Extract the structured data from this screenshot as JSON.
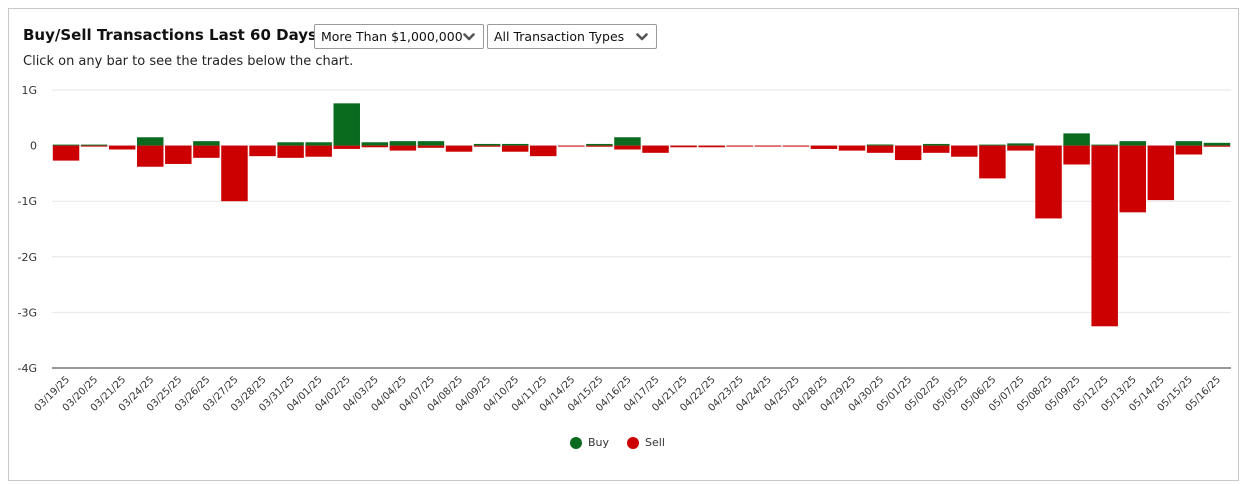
{
  "header": {
    "title": "Buy/Sell Transactions Last 60 Days",
    "subtitle": "Click on any bar to see the trades below the chart."
  },
  "filters": {
    "amount_selected": "More Than $1,000,000",
    "type_selected": "All Transaction Types"
  },
  "icons": {
    "dropdown": "chevron-down-icon"
  },
  "colors": {
    "buy": "#0a6b1f",
    "sell": "#cc0000",
    "grid": "#e6e6e6",
    "axis": "#333333"
  },
  "chart_data": {
    "type": "bar",
    "stacked": "diverging",
    "categories": [
      "03/19/25",
      "03/20/25",
      "03/21/25",
      "03/24/25",
      "03/25/25",
      "03/26/25",
      "03/27/25",
      "03/28/25",
      "03/31/25",
      "04/01/25",
      "04/02/25",
      "04/03/25",
      "04/04/25",
      "04/07/25",
      "04/08/25",
      "04/09/25",
      "04/10/25",
      "04/11/25",
      "04/14/25",
      "04/15/25",
      "04/16/25",
      "04/17/25",
      "04/21/25",
      "04/22/25",
      "04/23/25",
      "04/24/25",
      "04/25/25",
      "04/28/25",
      "04/29/25",
      "04/30/25",
      "05/01/25",
      "05/02/25",
      "05/05/25",
      "05/06/25",
      "05/07/25",
      "05/08/25",
      "05/09/25",
      "05/12/25",
      "05/13/25",
      "05/14/25",
      "05/15/25",
      "05/16/25"
    ],
    "series": [
      {
        "name": "Buy",
        "unit": "G",
        "values": [
          0.01,
          0.01,
          0,
          0.15,
          0,
          0.08,
          0,
          0,
          0.06,
          0.06,
          0.76,
          0.06,
          0.08,
          0.08,
          0,
          0.03,
          0.03,
          0,
          0,
          0.03,
          0.15,
          0,
          0,
          0,
          0,
          0,
          0,
          0,
          0,
          0.02,
          0,
          0.03,
          0,
          0.01,
          0.04,
          0,
          0.22,
          0.01,
          0.08,
          0,
          0.08,
          0.05
        ]
      },
      {
        "name": "Sell",
        "unit": "G",
        "values": [
          -0.27,
          -0.01,
          -0.07,
          -0.38,
          -0.33,
          -0.22,
          -1.0,
          -0.19,
          -0.22,
          -0.2,
          -0.06,
          -0.03,
          -0.09,
          -0.04,
          -0.11,
          -0.02,
          -0.11,
          -0.19,
          -0.01,
          -0.02,
          -0.07,
          -0.13,
          -0.03,
          -0.03,
          -0.005,
          -0.005,
          -0.005,
          -0.06,
          -0.09,
          -0.13,
          -0.26,
          -0.13,
          -0.2,
          -0.59,
          -0.09,
          -1.31,
          -0.34,
          -3.25,
          -1.2,
          -0.98,
          -0.16,
          -0.02
        ]
      }
    ],
    "ylim": [
      -4,
      1
    ],
    "yticks": [
      1,
      0,
      -1,
      -2,
      -3,
      -4
    ],
    "ytick_labels": [
      "1G",
      "0",
      "-1G",
      "-2G",
      "-3G",
      "-4G"
    ],
    "grid": true,
    "legend": {
      "position": "bottom-center",
      "entries": [
        "Buy",
        "Sell"
      ]
    },
    "title": "Buy/Sell Transactions Last 60 Days"
  }
}
